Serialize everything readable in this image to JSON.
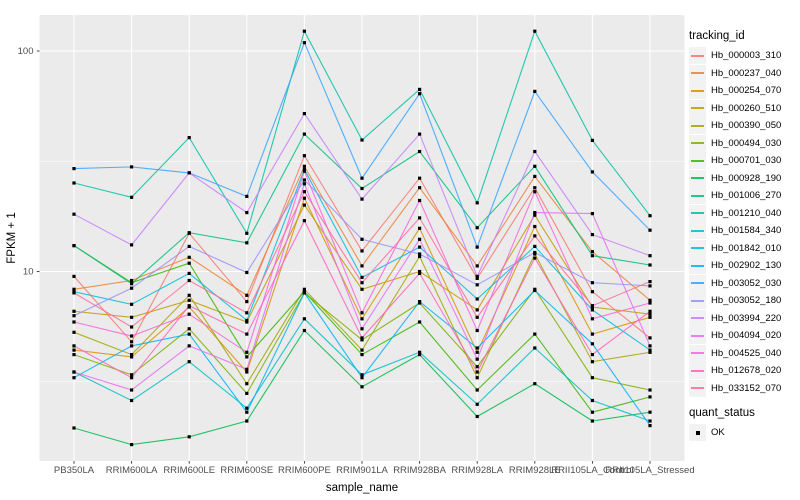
{
  "chart_data": {
    "type": "line",
    "title": "",
    "xlabel": "sample_name",
    "ylabel": "FPKM + 1",
    "yscale": "log10",
    "ylim": [
      1.35,
      150
    ],
    "ytick_labels": [
      "100",
      "10"
    ],
    "ytick_values": [
      100,
      10
    ],
    "yminor_values": [
      31.62,
      3.162
    ],
    "grid": "on",
    "panel_bg": "#EBEBEB",
    "grid_color": "#FFFFFF",
    "tick_color": "#333333",
    "tick_label_color": "#4D4D4D",
    "point_color": "#000000",
    "legend_position": "right",
    "categories": [
      "PB350LA",
      "RRIM600LA",
      "RRIM600LE",
      "RRIM600SE",
      "RRIM600PE",
      "RRIM901LA",
      "RRIM928BA",
      "RRIM928LA",
      "RRIM928LE",
      "RRII105LA_Control",
      "RRII105LA_Stressed"
    ],
    "series": [
      {
        "name": "Hb_000003_310",
        "color": "#F8766D",
        "values": [
          9.5,
          4.8,
          14.9,
          7.3,
          33.5,
          12.4,
          26.5,
          9.3,
          24.0,
          8.1,
          5.0
        ]
      },
      {
        "name": "Hb_000237_040",
        "color": "#EA8331",
        "values": [
          8.3,
          9.1,
          11.6,
          7.8,
          30.0,
          10.6,
          24.0,
          10.6,
          27.0,
          12.3,
          7.4
        ]
      },
      {
        "name": "Hb_000254_070",
        "color": "#D89000",
        "values": [
          4.4,
          4.1,
          6.9,
          3.5,
          21.5,
          6.1,
          15.7,
          4.3,
          16.0,
          5.2,
          6.2
        ]
      },
      {
        "name": "Hb_000260_510",
        "color": "#C09B00",
        "values": [
          6.6,
          6.2,
          7.4,
          5.9,
          20.0,
          8.3,
          10.0,
          6.7,
          18.0,
          6.9,
          6.4
        ]
      },
      {
        "name": "Hb_000390_050",
        "color": "#A3A500",
        "values": [
          5.3,
          4.2,
          7.8,
          3.1,
          8.3,
          4.4,
          11.7,
          3.3,
          12.0,
          3.9,
          4.3
        ]
      },
      {
        "name": "Hb_000494_030",
        "color": "#7CAE00",
        "values": [
          4.2,
          3.4,
          5.5,
          2.8,
          8.0,
          4.9,
          7.2,
          3.7,
          8.3,
          3.3,
          2.9
        ]
      },
      {
        "name": "Hb_000701_030",
        "color": "#39B600",
        "values": [
          13.1,
          8.9,
          10.9,
          4.1,
          8.1,
          4.2,
          5.9,
          2.9,
          5.2,
          2.3,
          2.7
        ]
      },
      {
        "name": "Hb_000928_190",
        "color": "#00BB4E",
        "values": [
          1.95,
          1.64,
          1.78,
          2.1,
          5.4,
          3.0,
          4.2,
          2.2,
          3.1,
          2.1,
          2.3
        ]
      },
      {
        "name": "Hb_001006_270",
        "color": "#00BF7D",
        "values": [
          13.1,
          8.8,
          15.0,
          13.5,
          42.0,
          23.8,
          35.0,
          15.8,
          30.0,
          11.8,
          10.7
        ]
      },
      {
        "name": "Hb_001210_040",
        "color": "#00C1A3",
        "values": [
          25.2,
          21.7,
          40.5,
          14.9,
          123.0,
          39.5,
          67.0,
          20.5,
          123.0,
          39.3,
          17.9
        ]
      },
      {
        "name": "Hb_001584_340",
        "color": "#00BFC4",
        "values": [
          3.5,
          2.6,
          3.9,
          2.4,
          6.1,
          3.4,
          4.3,
          2.5,
          4.5,
          2.6,
          2.1
        ]
      },
      {
        "name": "Hb_001842_010",
        "color": "#00BAE0",
        "values": [
          8.1,
          7.1,
          9.8,
          6.0,
          29.0,
          9.4,
          12.9,
          7.5,
          13.0,
          6.7,
          4.4
        ]
      },
      {
        "name": "Hb_002902_130",
        "color": "#00B0F6",
        "values": [
          3.3,
          4.6,
          5.2,
          2.3,
          8.0,
          3.3,
          7.3,
          4.5,
          8.2,
          4.7,
          2.0
        ]
      },
      {
        "name": "Hb_003052_030",
        "color": "#35A2FF",
        "values": [
          29.3,
          29.8,
          28.0,
          21.9,
          109.0,
          26.5,
          64.0,
          12.9,
          65.6,
          28.3,
          15.4
        ]
      },
      {
        "name": "Hb_003052_180",
        "color": "#9590FF",
        "values": [
          6.3,
          8.4,
          13.0,
          9.9,
          26.0,
          14.0,
          12.0,
          8.7,
          12.2,
          8.9,
          8.6
        ]
      },
      {
        "name": "Hb_003994_220",
        "color": "#C77CFF",
        "values": [
          18.2,
          13.2,
          28.0,
          18.5,
          52.0,
          21.3,
          42.0,
          9.5,
          35.0,
          14.7,
          11.8
        ]
      },
      {
        "name": "Hb_004094_020",
        "color": "#E76BF3",
        "values": [
          3.5,
          2.9,
          4.6,
          3.6,
          25.0,
          5.5,
          14.0,
          4.0,
          18.5,
          18.3,
          4.6
        ]
      },
      {
        "name": "Hb_004525_040",
        "color": "#FA62DB",
        "values": [
          5.9,
          5.1,
          6.4,
          4.3,
          28.5,
          6.5,
          21.0,
          5.4,
          23.0,
          6.1,
          7.2
        ]
      },
      {
        "name": "Hb_012678_020",
        "color": "#FF62BC",
        "values": [
          4.6,
          3.3,
          7.0,
          5.2,
          17.0,
          5.0,
          9.8,
          3.5,
          11.5,
          4.2,
          6.6
        ]
      },
      {
        "name": "Hb_033152_070",
        "color": "#FF6A98",
        "values": [
          8.0,
          5.6,
          9.1,
          6.5,
          23.0,
          8.9,
          17.5,
          6.2,
          14.5,
          7.0,
          9.0
        ]
      }
    ]
  },
  "legend": {
    "tracking_title": "tracking_id",
    "quant_title": "quant_status",
    "quant_entries": [
      {
        "label": "OK",
        "marker": "black-square"
      }
    ]
  },
  "axes": {
    "x_title": "sample_name",
    "y_title": "FPKM + 1"
  }
}
